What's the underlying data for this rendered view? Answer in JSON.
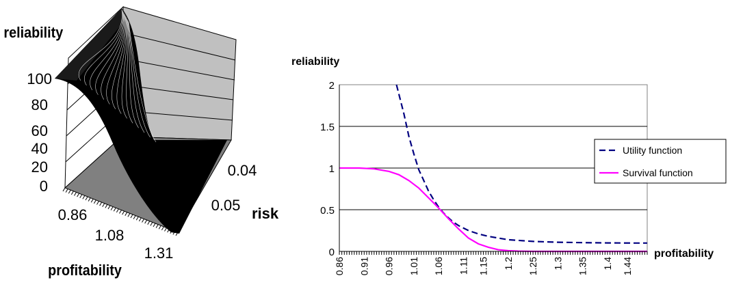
{
  "chart_data": [
    {
      "type": "surface",
      "zlabel": "reliability",
      "xlabel": "profitability",
      "ylabel": "risk",
      "z_ticks": [
        "100",
        "80",
        "60",
        "40",
        "20",
        "0"
      ],
      "x_ticks": [
        "0.86",
        "1.08",
        "1.31"
      ],
      "y_ticks": [
        "0.05",
        "0.04"
      ],
      "colors": {
        "surface": "#000000",
        "wall": "#c0c0c0",
        "floor": "#808080",
        "mesh": "#ffffff"
      }
    },
    {
      "type": "line",
      "ylabel": "reliability",
      "xlabel": "profitability",
      "ylim": [
        0,
        2
      ],
      "y_ticks": [
        "0",
        "0.5",
        "1",
        "1.5",
        "2"
      ],
      "x_ticks": [
        "0.86",
        "0.91",
        "0.96",
        "1.01",
        "1.06",
        "1.11",
        "1.15",
        "1.2",
        "1.25",
        "1.3",
        "1.35",
        "1.4",
        "1.44"
      ],
      "x_range": [
        0.86,
        1.48
      ],
      "grid": true,
      "legend_position": "right",
      "series": [
        {
          "name": "Utility function",
          "color": "#000080",
          "style": "dashed",
          "x": [
            0.975,
            0.99,
            1.0,
            1.01,
            1.02,
            1.03,
            1.04,
            1.05,
            1.06,
            1.07,
            1.08,
            1.09,
            1.1,
            1.12,
            1.14,
            1.16,
            1.18,
            1.2,
            1.25,
            1.3,
            1.35,
            1.4,
            1.45,
            1.48
          ],
          "y": [
            2.0,
            1.65,
            1.38,
            1.17,
            0.98,
            0.85,
            0.72,
            0.62,
            0.53,
            0.46,
            0.4,
            0.35,
            0.31,
            0.25,
            0.21,
            0.18,
            0.16,
            0.14,
            0.12,
            0.11,
            0.105,
            0.102,
            0.1,
            0.1
          ]
        },
        {
          "name": "Survival function",
          "color": "#ff00ff",
          "style": "solid",
          "x": [
            0.86,
            0.9,
            0.93,
            0.96,
            0.98,
            1.0,
            1.02,
            1.04,
            1.06,
            1.08,
            1.1,
            1.12,
            1.14,
            1.16,
            1.18,
            1.2,
            1.22,
            1.25,
            1.3,
            1.4,
            1.48
          ],
          "y": [
            1.0,
            1.0,
            0.99,
            0.96,
            0.92,
            0.85,
            0.76,
            0.64,
            0.52,
            0.39,
            0.27,
            0.16,
            0.09,
            0.05,
            0.02,
            0.008,
            0.003,
            0.0,
            0.0,
            0.0,
            0.0
          ]
        }
      ]
    }
  ]
}
